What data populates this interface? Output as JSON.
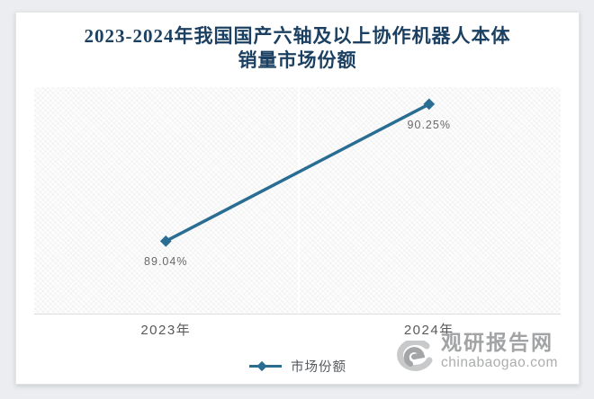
{
  "title": {
    "line1": "2023-2024年我国国产六轴及以上协作机器人本体",
    "line2": "销量市场份额"
  },
  "chart_data": {
    "type": "line",
    "categories": [
      "2023年",
      "2024年"
    ],
    "series": [
      {
        "name": "市场份额",
        "values": [
          89.04,
          90.25
        ]
      }
    ],
    "data_labels": [
      "89.04%",
      "90.25%"
    ],
    "ylim": [
      88.4,
      90.4
    ],
    "grid": "vertical category separator only",
    "legend_position": "bottom",
    "marker": "diamond"
  },
  "legend": {
    "label": "市场份额"
  },
  "watermark": {
    "name": "观研报告网",
    "url": "chinabaogao.com"
  },
  "colors": {
    "accent": "#2a6d93",
    "title": "#1c4061",
    "label_gray": "#595959",
    "watermark_gray": "#a2a3a4"
  }
}
